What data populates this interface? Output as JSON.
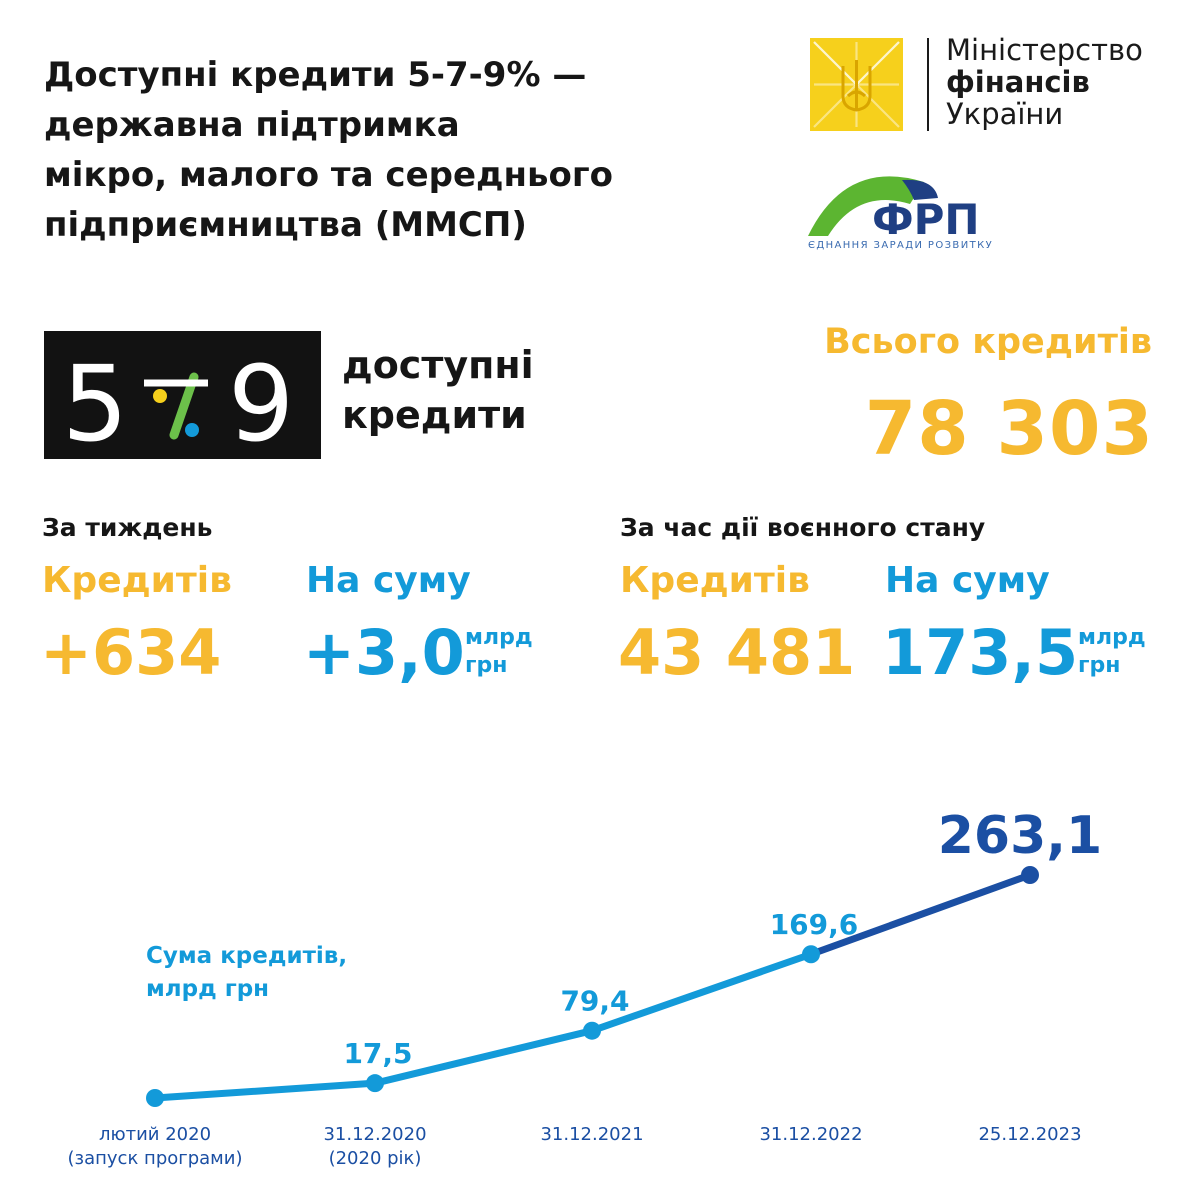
{
  "header": {
    "title_lines": [
      "Доступні кредити 5-7-9% —",
      "державна підтримка",
      "мікро, малого та середнього",
      "підприємництва (ММСП)"
    ]
  },
  "ministry_logo": {
    "line1": "Міністерство",
    "line2": "фінансів",
    "line3": "України",
    "emblem_color": "#f6d01c"
  },
  "frp_logo": {
    "name": "ФРП",
    "tagline": "ЄДНАННЯ ЗАРАДИ РОЗВИТКУ"
  },
  "program_logo": {
    "digit1": "5",
    "digit2": "7",
    "digit3": "9",
    "subtitle_line1": "доступні",
    "subtitle_line2": "кредити"
  },
  "total": {
    "label": "Всього кредитів",
    "value": "78 303"
  },
  "week": {
    "heading": "За тиждень",
    "credits_label": "Кредитів",
    "credits_value": "+634",
    "sum_label": "На суму",
    "sum_value": "+3,0",
    "sum_unit_line1": "млрд",
    "sum_unit_line2": "грн"
  },
  "martial": {
    "heading": "За час дії воєнного стану",
    "credits_label": "Кредитів",
    "credits_value": "43 481",
    "sum_label": "На суму",
    "sum_value": "173,5",
    "sum_unit_line1": "млрд",
    "sum_unit_line2": "грн"
  },
  "colors": {
    "yellow": "#f6b930",
    "light_blue": "#139ad9",
    "dark_blue": "#1b4fa3",
    "black": "#121212"
  },
  "chart_data": {
    "type": "line",
    "caption_line1": "Сума кредитів,",
    "caption_line2": "млрд грн",
    "points": [
      {
        "label_line1": "лютий 2020",
        "label_line2": "(запуск програми)",
        "value": 0,
        "value_label": ""
      },
      {
        "label_line1": "31.12.2020",
        "label_line2": "(2020 рік)",
        "value": 17.5,
        "value_label": "17,5"
      },
      {
        "label_line1": "31.12.2021",
        "label_line2": "",
        "value": 79.4,
        "value_label": "79,4"
      },
      {
        "label_line1": "31.12.2022",
        "label_line2": "",
        "value": 169.6,
        "value_label": "169,6"
      },
      {
        "label_line1": "25.12.2023",
        "label_line2": "",
        "value": 263.1,
        "value_label": "263,1"
      }
    ],
    "ylim": [
      0,
      263.1
    ],
    "grid": false
  }
}
